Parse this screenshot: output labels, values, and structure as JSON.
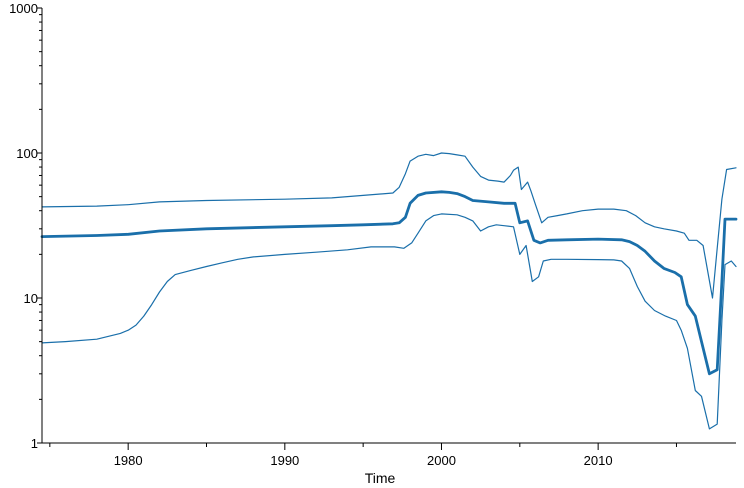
{
  "chart_data": {
    "type": "line",
    "title": "",
    "xlabel": "Time",
    "ylabel": "",
    "xlim": [
      1974.5,
      2018.8
    ],
    "ylim": [
      1,
      1000
    ],
    "yscale": "log",
    "grid": false,
    "x_ticks": [
      1980,
      1990,
      2000,
      2010
    ],
    "x_tick_labels": [
      "1980",
      "1990",
      "2000",
      "2010"
    ],
    "y_ticks": [
      1,
      10,
      100,
      1000
    ],
    "y_tick_labels": [
      "1",
      "10",
      "100",
      "1000"
    ],
    "colors": {
      "line": "#1a6faa",
      "axis": "#000000"
    },
    "series": [
      {
        "role": "upper",
        "stroke": 1.2,
        "points": [
          [
            1974.5,
            42.5
          ],
          [
            1978,
            43
          ],
          [
            1980,
            44
          ],
          [
            1982,
            46
          ],
          [
            1985,
            47
          ],
          [
            1990,
            48
          ],
          [
            1993,
            49
          ],
          [
            1995,
            51
          ],
          [
            1996.9,
            53
          ],
          [
            1997.3,
            58
          ],
          [
            1997.7,
            72
          ],
          [
            1998,
            88
          ],
          [
            1998.5,
            95
          ],
          [
            1999,
            98
          ],
          [
            1999.5,
            96
          ],
          [
            2000,
            100
          ],
          [
            2000.5,
            99
          ],
          [
            2001,
            97
          ],
          [
            2001.5,
            95
          ],
          [
            2002,
            80
          ],
          [
            2002.5,
            69
          ],
          [
            2003,
            65
          ],
          [
            2003.6,
            64
          ],
          [
            2004,
            63
          ],
          [
            2004.4,
            70
          ],
          [
            2004.6,
            76
          ],
          [
            2004.9,
            80
          ],
          [
            2005.1,
            56
          ],
          [
            2005.5,
            63
          ],
          [
            2005.7,
            55
          ],
          [
            2006,
            44
          ],
          [
            2006.4,
            33
          ],
          [
            2006.8,
            36
          ],
          [
            2007.4,
            37
          ],
          [
            2008,
            38
          ],
          [
            2009,
            40
          ],
          [
            2010,
            41
          ],
          [
            2011,
            41
          ],
          [
            2011.8,
            40
          ],
          [
            2012.4,
            37
          ],
          [
            2013,
            33
          ],
          [
            2013.6,
            31
          ],
          [
            2014.2,
            30
          ],
          [
            2015,
            29
          ],
          [
            2015.5,
            28
          ],
          [
            2015.8,
            25
          ],
          [
            2016.3,
            25
          ],
          [
            2016.7,
            23
          ],
          [
            2017.3,
            10
          ],
          [
            2017.6,
            22
          ],
          [
            2017.9,
            48
          ],
          [
            2018.2,
            77
          ],
          [
            2018.8,
            79
          ]
        ]
      },
      {
        "role": "center",
        "stroke": 2.8,
        "points": [
          [
            1974.5,
            26.5
          ],
          [
            1978,
            27
          ],
          [
            1980,
            27.5
          ],
          [
            1982,
            29
          ],
          [
            1985,
            30
          ],
          [
            1990,
            31
          ],
          [
            1993,
            31.5
          ],
          [
            1995,
            32
          ],
          [
            1996.9,
            32.5
          ],
          [
            1997.3,
            33
          ],
          [
            1997.7,
            36
          ],
          [
            1998,
            45
          ],
          [
            1998.5,
            51
          ],
          [
            1999,
            53
          ],
          [
            2000,
            54
          ],
          [
            2000.5,
            53.5
          ],
          [
            2001,
            52.5
          ],
          [
            2001.5,
            50
          ],
          [
            2002,
            47
          ],
          [
            2003,
            46
          ],
          [
            2004,
            45
          ],
          [
            2004.7,
            45
          ],
          [
            2005,
            33
          ],
          [
            2005.5,
            34
          ],
          [
            2005.9,
            25
          ],
          [
            2006.3,
            24
          ],
          [
            2006.8,
            25
          ],
          [
            2008,
            25.2
          ],
          [
            2010,
            25.5
          ],
          [
            2011.5,
            25.2
          ],
          [
            2012,
            24.5
          ],
          [
            2012.5,
            23
          ],
          [
            2013,
            21
          ],
          [
            2013.6,
            18
          ],
          [
            2014.2,
            16
          ],
          [
            2014.9,
            15
          ],
          [
            2015.3,
            14
          ],
          [
            2015.7,
            9
          ],
          [
            2016.2,
            7.5
          ],
          [
            2016.6,
            5
          ],
          [
            2017.1,
            3
          ],
          [
            2017.6,
            3.2
          ],
          [
            2017.9,
            13
          ],
          [
            2018.1,
            35
          ],
          [
            2018.8,
            35
          ]
        ]
      },
      {
        "role": "lower",
        "stroke": 1.2,
        "points": [
          [
            1974.5,
            4.9
          ],
          [
            1976,
            5
          ],
          [
            1978,
            5.2
          ],
          [
            1979.5,
            5.7
          ],
          [
            1980,
            6
          ],
          [
            1980.5,
            6.5
          ],
          [
            1981,
            7.5
          ],
          [
            1981.5,
            9
          ],
          [
            1982,
            11
          ],
          [
            1982.5,
            13
          ],
          [
            1983,
            14.5
          ],
          [
            1984,
            15.5
          ],
          [
            1985,
            16.5
          ],
          [
            1986,
            17.5
          ],
          [
            1987,
            18.5
          ],
          [
            1988,
            19.2
          ],
          [
            1990,
            20
          ],
          [
            1992,
            20.7
          ],
          [
            1994,
            21.5
          ],
          [
            1995.5,
            22.5
          ],
          [
            1997,
            22.5
          ],
          [
            1997.6,
            22
          ],
          [
            1998.1,
            24
          ],
          [
            1998.5,
            28
          ],
          [
            1999,
            34
          ],
          [
            1999.5,
            37
          ],
          [
            2000,
            38
          ],
          [
            2001,
            37.5
          ],
          [
            2001.5,
            36
          ],
          [
            2002,
            34
          ],
          [
            2002.5,
            29
          ],
          [
            2003,
            31
          ],
          [
            2003.5,
            32
          ],
          [
            2004,
            31.5
          ],
          [
            2004.6,
            31
          ],
          [
            2005,
            20
          ],
          [
            2005.4,
            23
          ],
          [
            2005.8,
            13
          ],
          [
            2006.2,
            14
          ],
          [
            2006.5,
            18
          ],
          [
            2007,
            18.5
          ],
          [
            2008,
            18.5
          ],
          [
            2010,
            18.4
          ],
          [
            2011,
            18.3
          ],
          [
            2011.5,
            18
          ],
          [
            2012,
            16
          ],
          [
            2012.5,
            12
          ],
          [
            2013,
            9.5
          ],
          [
            2013.6,
            8.2
          ],
          [
            2014.3,
            7.5
          ],
          [
            2015,
            7
          ],
          [
            2015.3,
            6
          ],
          [
            2015.7,
            4.5
          ],
          [
            2016.2,
            2.3
          ],
          [
            2016.6,
            2.1
          ],
          [
            2017.1,
            1.25
          ],
          [
            2017.6,
            1.35
          ],
          [
            2017.9,
            7
          ],
          [
            2018.1,
            17
          ],
          [
            2018.5,
            18
          ],
          [
            2018.8,
            16.5
          ]
        ]
      }
    ]
  }
}
